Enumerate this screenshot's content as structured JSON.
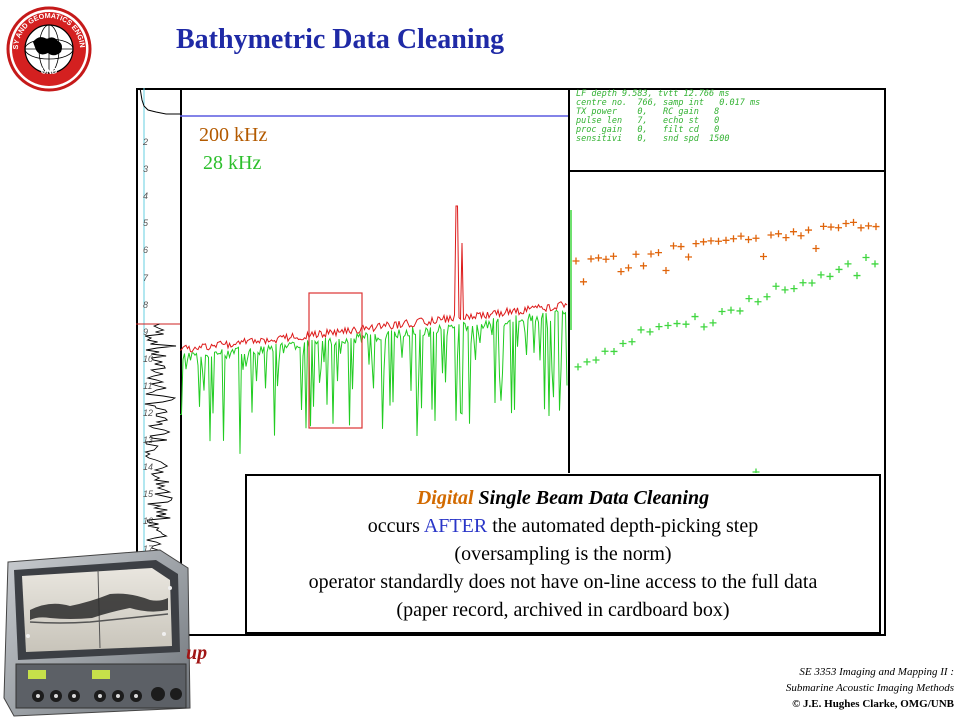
{
  "title": "Bathymetric Data Cleaning",
  "logo": {
    "text_top": "GEODESY AND GEOMATICS ENGINEERING",
    "text_bottom": "UNB"
  },
  "echogram": {
    "depth_ticks": [
      "2",
      "3",
      "4",
      "5",
      "6",
      "7",
      "8",
      "9",
      "10",
      "11",
      "12",
      "13",
      "14",
      "15",
      "16",
      "17"
    ]
  },
  "frequency_labels": {
    "high": "200 kHz",
    "low": "28 kHz"
  },
  "info_panel": {
    "lines": [
      "LF depth 9.583, tvtt 12.766 ms",
      "centre no.  766, samp int   0.017 ms",
      "TX power    0,   RC gain   8",
      "pulse len   7,   echo st   0",
      "proc gain   0,   filt cd   0",
      "sensitivi   0,   snd spd  1500"
    ]
  },
  "textbox": {
    "line1_a": "Digital",
    "line1_b": " Single Beam Data Cleaning",
    "line2_a": "occurs ",
    "line2_b": "AFTER",
    "line2_c": " the automated depth-picking step",
    "line3": "(oversampling is the norm)",
    "line4": "operator standardly does not have on-line access to the full data",
    "line5": "(paper record, archived in cardboard box)"
  },
  "caption_fragment": "up",
  "footer": {
    "line1": "SE 3353 Imaging and Mapping II :",
    "line2": "Submarine Acoustic Imaging Methods",
    "line3": "© J.E. Hughes Clarke, OMG/UNB"
  },
  "colors": {
    "title": "#1f2aa6",
    "hf_trace": "#dd1a1a",
    "lf_trace": "#22cc22",
    "hf_marker": "#e0640a",
    "lf_marker": "#3fd63f",
    "digital": "#d26a00",
    "after": "#2a36c8"
  }
}
